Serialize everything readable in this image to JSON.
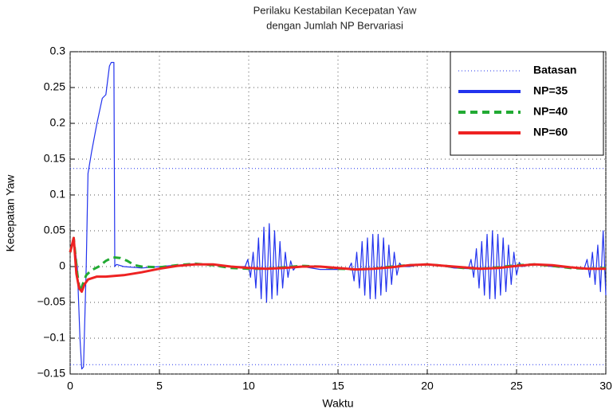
{
  "chart_data": {
    "type": "line",
    "title": "Perilaku Kestabilan Kecepatan Yaw",
    "subtitle": "dengan Jumlah NP Bervariasi",
    "xlabel": "Waktu",
    "ylabel": "Kecepatan Yaw",
    "xlim": [
      0,
      30
    ],
    "xticks": [
      0,
      5,
      10,
      15,
      20,
      25,
      30
    ],
    "ylim": [
      -0.15,
      0.3
    ],
    "yticks": [
      0.3,
      0.25,
      0.2,
      0.15,
      0.1,
      0.05,
      0,
      {
        "value": -0.05,
        "label": "−0.05"
      },
      {
        "value": -0.1,
        "label": "−0.1"
      },
      {
        "value": -0.15,
        "label": "−0.15"
      }
    ],
    "grid": true,
    "legend": "upper right",
    "series": [
      {
        "name": "Batasan",
        "color": "#2233ee",
        "style": "dotted",
        "values": [
          0.137,
          -0.137
        ]
      },
      {
        "name": "NP=35",
        "color": "#2233ee",
        "style": "solid",
        "x": [
          0,
          0.2,
          0.4,
          0.55,
          0.65,
          0.75,
          0.9,
          1.0,
          1.2,
          1.5,
          1.8,
          2.0,
          2.2,
          2.3,
          2.45,
          2.5,
          2.6,
          3,
          4,
          5,
          6,
          7,
          8,
          9,
          9.8,
          9.95,
          10.1,
          10.25,
          10.4,
          10.55,
          10.7,
          10.85,
          11.0,
          11.15,
          11.3,
          11.45,
          11.6,
          11.75,
          11.9,
          12.05,
          12.2,
          12.35,
          12.5,
          12.65,
          13,
          14,
          15,
          15.6,
          15.75,
          15.9,
          16.05,
          16.2,
          16.35,
          16.5,
          16.65,
          16.8,
          16.95,
          17.1,
          17.25,
          17.4,
          17.55,
          17.7,
          17.85,
          18.0,
          18.15,
          18.3,
          18.45,
          18.6,
          19,
          19.8,
          20.5,
          21.5,
          22.3,
          22.45,
          22.6,
          22.75,
          22.9,
          23.05,
          23.2,
          23.35,
          23.5,
          23.65,
          23.8,
          23.95,
          24.1,
          24.25,
          24.4,
          24.55,
          24.7,
          24.85,
          25.0,
          25.15,
          25.3,
          26,
          27,
          28,
          28.8,
          28.95,
          29.1,
          29.25,
          29.4,
          29.55,
          29.7,
          29.85,
          30
        ],
        "values": [
          0.02,
          0.04,
          0.0,
          -0.1,
          -0.143,
          -0.14,
          0.0,
          0.13,
          0.16,
          0.2,
          0.235,
          0.24,
          0.28,
          0.285,
          0.285,
          0.0,
          0.003,
          0.0,
          -0.002,
          0.0,
          0.002,
          0.004,
          0.003,
          0.0,
          0.0,
          0.01,
          -0.015,
          0.02,
          -0.03,
          0.04,
          -0.045,
          0.055,
          -0.05,
          0.06,
          -0.045,
          0.05,
          -0.04,
          0.035,
          -0.03,
          0.02,
          -0.015,
          0.008,
          -0.005,
          0.0,
          0.0,
          -0.004,
          -0.004,
          -0.003,
          0.005,
          -0.02,
          0.02,
          -0.03,
          0.035,
          -0.04,
          0.04,
          -0.045,
          0.045,
          -0.045,
          0.045,
          -0.04,
          0.04,
          -0.035,
          0.03,
          -0.025,
          0.02,
          -0.012,
          0.005,
          0.0,
          0.0,
          0.003,
          0.002,
          -0.002,
          -0.003,
          0.01,
          -0.015,
          0.025,
          -0.03,
          0.035,
          -0.04,
          0.045,
          -0.045,
          0.05,
          -0.045,
          0.045,
          -0.04,
          0.04,
          -0.035,
          0.03,
          -0.025,
          0.02,
          -0.012,
          0.006,
          0.0,
          0.003,
          0.0,
          -0.002,
          -0.002,
          0.01,
          -0.015,
          0.02,
          -0.025,
          0.03,
          -0.035,
          0.05,
          -0.04
        ]
      },
      {
        "name": "NP=40",
        "color": "#22aa33",
        "style": "dashed",
        "x": [
          0,
          0.2,
          0.4,
          0.55,
          0.7,
          0.9,
          1.2,
          1.6,
          2,
          2.4,
          2.8,
          3.2,
          3.6,
          4,
          5,
          6,
          7,
          8,
          9,
          10,
          11,
          12,
          13,
          14,
          15,
          16,
          17,
          18,
          19,
          20,
          21,
          22,
          23,
          24,
          25,
          26,
          27,
          28,
          29,
          30
        ],
        "values": [
          0.02,
          0.04,
          -0.01,
          -0.035,
          -0.025,
          -0.012,
          -0.005,
          0.0,
          0.008,
          0.013,
          0.012,
          0.008,
          0.002,
          0.0,
          -0.001,
          0.002,
          0.004,
          0.002,
          -0.002,
          -0.003,
          -0.003,
          -0.001,
          0.001,
          0.0,
          -0.003,
          -0.004,
          -0.003,
          0.0,
          0.002,
          0.003,
          0.001,
          -0.002,
          -0.003,
          -0.001,
          0.002,
          0.003,
          0.001,
          -0.002,
          -0.003,
          -0.002
        ]
      },
      {
        "name": "NP=60",
        "color": "#ee2222",
        "style": "solid",
        "x": [
          0,
          0.2,
          0.35,
          0.5,
          0.65,
          0.8,
          1.0,
          1.5,
          2,
          3,
          4,
          5,
          6,
          7,
          8,
          9,
          10,
          11,
          12,
          13,
          14,
          15,
          16,
          17,
          18,
          19,
          20,
          21,
          22,
          23,
          24,
          25,
          26,
          27,
          28,
          29,
          30
        ],
        "values": [
          0.02,
          0.04,
          -0.01,
          -0.03,
          -0.035,
          -0.025,
          -0.018,
          -0.014,
          -0.014,
          -0.012,
          -0.008,
          -0.003,
          0.001,
          0.003,
          0.003,
          0.0,
          -0.002,
          -0.003,
          -0.002,
          0.0,
          0.0,
          -0.002,
          -0.004,
          -0.003,
          -0.001,
          0.002,
          0.003,
          0.001,
          -0.001,
          -0.003,
          -0.002,
          0.001,
          0.003,
          0.002,
          -0.001,
          -0.003,
          -0.003
        ]
      }
    ]
  }
}
